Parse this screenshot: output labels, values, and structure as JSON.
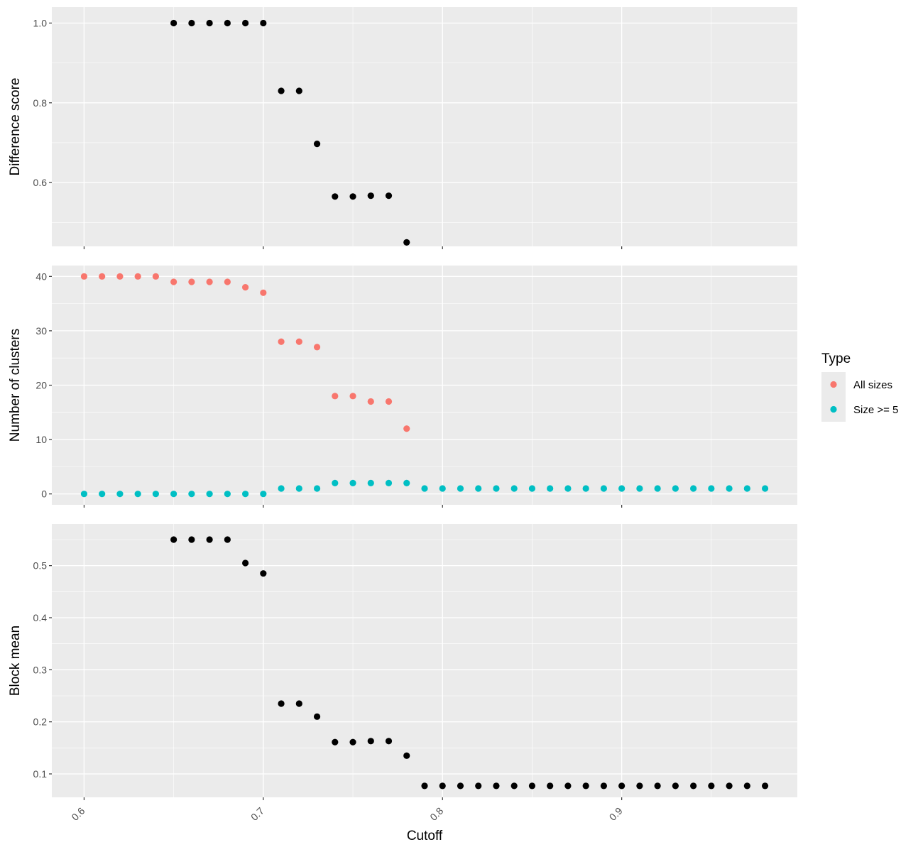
{
  "chart_data": [
    {
      "type": "scatter",
      "ylabel": "Difference score",
      "ylim": [
        0.44,
        1.04
      ],
      "yticks": [
        0.6,
        0.8,
        1.0
      ],
      "ytick_labels": [
        "0.6",
        "0.8",
        "1.0"
      ],
      "series": [
        {
          "name": "",
          "x": [
            0.65,
            0.66,
            0.67,
            0.68,
            0.69,
            0.7,
            0.71,
            0.72,
            0.73,
            0.74,
            0.75,
            0.76,
            0.77,
            0.78
          ],
          "y": [
            1.0,
            1.0,
            1.0,
            1.0,
            1.0,
            1.0,
            0.83,
            0.83,
            0.697,
            0.565,
            0.565,
            0.567,
            0.567,
            0.45
          ]
        }
      ]
    },
    {
      "type": "scatter",
      "ylabel": "Number of clusters",
      "ylim": [
        -2,
        42
      ],
      "yticks": [
        0,
        10,
        20,
        30,
        40
      ],
      "ytick_labels": [
        "0",
        "10",
        "20",
        "30",
        "40"
      ],
      "legend": {
        "title": "Type",
        "placement": "right"
      },
      "series": [
        {
          "name": "All sizes",
          "color": "#F8766D",
          "x": [
            0.6,
            0.61,
            0.62,
            0.63,
            0.64,
            0.65,
            0.66,
            0.67,
            0.68,
            0.69,
            0.7,
            0.71,
            0.72,
            0.73,
            0.74,
            0.75,
            0.76,
            0.77,
            0.78
          ],
          "y": [
            40,
            40,
            40,
            40,
            40,
            39,
            39,
            39,
            39,
            38,
            37,
            28,
            28,
            27,
            18,
            18,
            17,
            17,
            12
          ]
        },
        {
          "name": "Size >= 5",
          "color": "#00BFC4",
          "x": [
            0.6,
            0.61,
            0.62,
            0.63,
            0.64,
            0.65,
            0.66,
            0.67,
            0.68,
            0.69,
            0.7,
            0.71,
            0.72,
            0.73,
            0.74,
            0.75,
            0.76,
            0.77,
            0.78,
            0.79,
            0.8,
            0.81,
            0.82,
            0.83,
            0.84,
            0.85,
            0.86,
            0.87,
            0.88,
            0.89,
            0.9,
            0.91,
            0.92,
            0.93,
            0.94,
            0.95,
            0.96,
            0.97,
            0.98
          ],
          "y": [
            0,
            0,
            0,
            0,
            0,
            0,
            0,
            0,
            0,
            0,
            0,
            1,
            1,
            1,
            2,
            2,
            2,
            2,
            2,
            1,
            1,
            1,
            1,
            1,
            1,
            1,
            1,
            1,
            1,
            1,
            1,
            1,
            1,
            1,
            1,
            1,
            1,
            1,
            1
          ]
        }
      ]
    },
    {
      "type": "scatter",
      "ylabel": "Block mean",
      "xlabel": "Cutoff",
      "ylim": [
        0.055,
        0.58
      ],
      "yticks": [
        0.1,
        0.2,
        0.3,
        0.4,
        0.5
      ],
      "ytick_labels": [
        "0.1",
        "0.2",
        "0.3",
        "0.4",
        "0.5"
      ],
      "series": [
        {
          "name": "",
          "x": [
            0.65,
            0.66,
            0.67,
            0.68,
            0.69,
            0.7,
            0.71,
            0.72,
            0.73,
            0.74,
            0.75,
            0.76,
            0.77,
            0.78,
            0.79,
            0.8,
            0.81,
            0.82,
            0.83,
            0.84,
            0.85,
            0.86,
            0.87,
            0.88,
            0.89,
            0.9,
            0.91,
            0.92,
            0.93,
            0.94,
            0.95,
            0.96,
            0.97,
            0.98
          ],
          "y": [
            0.55,
            0.55,
            0.55,
            0.55,
            0.505,
            0.485,
            0.235,
            0.235,
            0.21,
            0.161,
            0.161,
            0.163,
            0.163,
            0.135,
            0.077,
            0.077,
            0.077,
            0.077,
            0.077,
            0.077,
            0.077,
            0.077,
            0.077,
            0.077,
            0.077,
            0.077,
            0.077,
            0.077,
            0.077,
            0.077,
            0.077,
            0.077,
            0.077,
            0.077
          ]
        }
      ]
    }
  ],
  "shared_x": {
    "label": "Cutoff",
    "xlim": [
      0.582,
      0.998
    ],
    "ticks": [
      0.6,
      0.7,
      0.8,
      0.9
    ],
    "tick_labels": [
      "0.6",
      "0.7",
      "0.8",
      "0.9"
    ],
    "grid": true
  },
  "colors": {
    "panel_background": "#EBEBEB",
    "grid": "#FFFFFF",
    "default_point": "#000000"
  }
}
